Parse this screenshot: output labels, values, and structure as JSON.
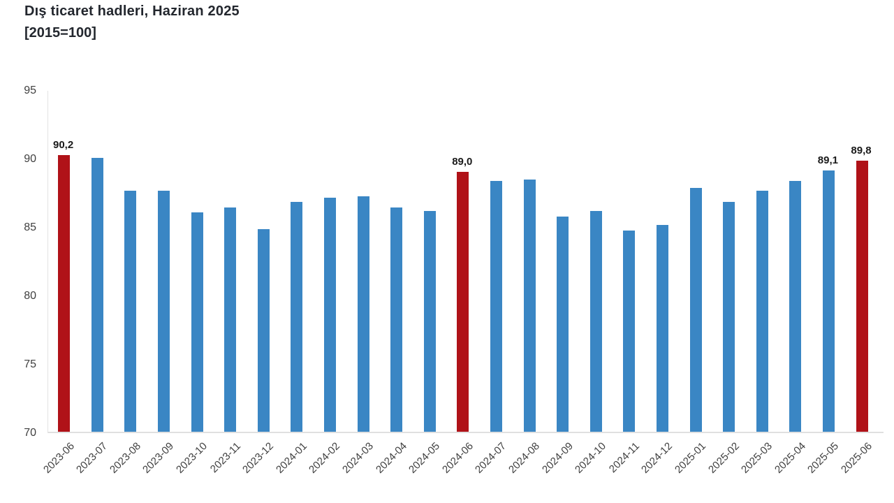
{
  "header": {
    "title": "Dış ticaret hadleri, Haziran 2025",
    "subtitle": "[2015=100]"
  },
  "chart_data": {
    "type": "bar",
    "title": "Dış ticaret hadleri, Haziran 2025",
    "subtitle": "[2015=100]",
    "xlabel": "",
    "ylabel": "",
    "categories": [
      "2023-06",
      "2023-07",
      "2023-08",
      "2023-09",
      "2023-10",
      "2023-11",
      "2023-12",
      "2024-01",
      "2024-02",
      "2024-03",
      "2024-04",
      "2024-05",
      "2024-06",
      "2024-07",
      "2024-08",
      "2024-09",
      "2024-10",
      "2024-11",
      "2024-12",
      "2025-01",
      "2025-02",
      "2025-03",
      "2025-04",
      "2025-05",
      "2025-06"
    ],
    "values": [
      90.2,
      90.0,
      87.6,
      87.6,
      86.0,
      86.4,
      84.8,
      86.8,
      87.1,
      87.2,
      86.4,
      86.1,
      89.0,
      88.3,
      88.4,
      85.7,
      86.1,
      84.7,
      85.1,
      87.8,
      86.8,
      87.6,
      88.3,
      89.1,
      89.8
    ],
    "bar_labels": [
      "90,2",
      null,
      null,
      null,
      null,
      null,
      null,
      null,
      null,
      null,
      null,
      null,
      "89,0",
      null,
      null,
      null,
      null,
      null,
      null,
      null,
      null,
      null,
      null,
      "89,1",
      "89,8"
    ],
    "highlighted_categories": [
      "2023-06",
      "2024-06",
      "2025-06"
    ],
    "ylim": [
      70,
      95
    ],
    "yticks": [
      95,
      90,
      85,
      80,
      75,
      70
    ],
    "grid": false,
    "legend": false,
    "colors": {
      "bar": "#3a86c4",
      "highlight": "#b01218",
      "axis": "#e0e0e0",
      "tick_text": "#3f3f3f",
      "bar_label_text": "#1a1a1a",
      "title_text": "#23272e"
    }
  }
}
